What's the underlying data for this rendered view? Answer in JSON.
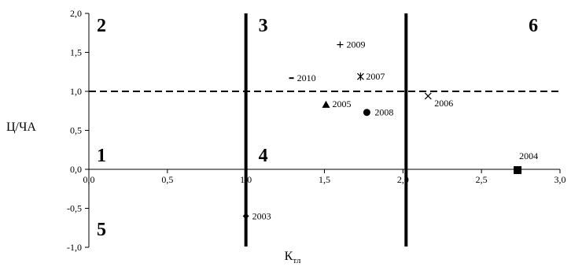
{
  "chart_data": {
    "type": "scatter",
    "xlabel": "К",
    "xlabel_sub": "тл",
    "ylabel": "Ц/ЧА",
    "xlim": [
      0,
      3
    ],
    "ylim": [
      -1,
      2
    ],
    "x_ticks": [
      "0,0",
      "0,5",
      "1,0",
      "1,5",
      "2,0",
      "2,5",
      "3,0"
    ],
    "y_ticks": [
      "-1,0",
      "-0,5",
      "0,0",
      "0,5",
      "1,0",
      "1,5",
      "2,0"
    ],
    "grid": false,
    "points": [
      {
        "label": "2003",
        "x": 1.0,
        "y": -0.6,
        "marker": "diamond"
      },
      {
        "label": "2004",
        "x": 2.73,
        "y": -0.01,
        "marker": "square"
      },
      {
        "label": "2005",
        "x": 1.51,
        "y": 0.83,
        "marker": "triangle"
      },
      {
        "label": "2006",
        "x": 2.16,
        "y": 0.94,
        "marker": "x"
      },
      {
        "label": "2007",
        "x": 1.73,
        "y": 1.19,
        "marker": "asterisk"
      },
      {
        "label": "2008",
        "x": 1.77,
        "y": 0.73,
        "marker": "circle"
      },
      {
        "label": "2009",
        "x": 1.6,
        "y": 1.6,
        "marker": "plus"
      },
      {
        "label": "2010",
        "x": 1.29,
        "y": 1.17,
        "marker": "dash"
      }
    ],
    "reference_lines": [
      {
        "orientation": "horizontal",
        "value": 1.0,
        "style": "dashed"
      },
      {
        "orientation": "vertical",
        "value": 1.0,
        "style": "solid-thick"
      },
      {
        "orientation": "vertical",
        "value": 2.02,
        "style": "solid-thick"
      }
    ],
    "regions": [
      {
        "label": "1",
        "x": 0.05,
        "y": 0.1
      },
      {
        "label": "2",
        "x": 0.05,
        "y": 1.77
      },
      {
        "label": "3",
        "x": 1.08,
        "y": 1.77
      },
      {
        "label": "4",
        "x": 1.08,
        "y": 0.1
      },
      {
        "label": "5",
        "x": 0.05,
        "y": -0.85
      },
      {
        "label": "6",
        "x": 2.8,
        "y": 1.77
      }
    ],
    "colors": {
      "ink": "#000000",
      "background": "#ffffff"
    }
  }
}
